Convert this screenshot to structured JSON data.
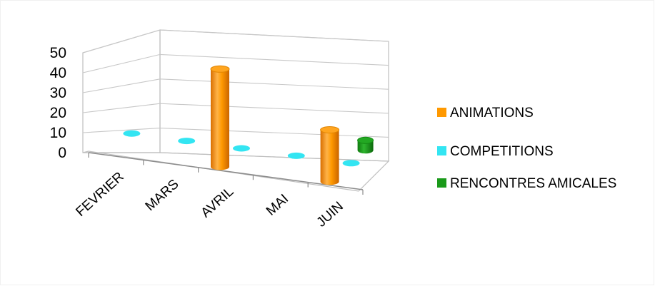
{
  "chart_data": {
    "type": "bar",
    "style": "3d-cylinder",
    "categories": [
      "FEVRIER",
      "MARS",
      "AVRIL",
      "MAI",
      "JUIN"
    ],
    "series": [
      {
        "name": "ANIMATIONS",
        "color": "#FF9900",
        "values": [
          0,
          0,
          49,
          0,
          26
        ]
      },
      {
        "name": "COMPETITIONS",
        "color": "#33E5F2",
        "values": [
          0,
          0,
          0,
          0,
          0
        ]
      },
      {
        "name": "RENCONTRES AMICALES",
        "color": "#1A9A1A",
        "values": [
          0,
          0,
          0,
          0,
          5
        ]
      }
    ],
    "y_ticks": [
      "0",
      "10",
      "20",
      "30",
      "40",
      "50"
    ],
    "ylim": [
      0,
      50
    ],
    "grid": true,
    "legend_position": "right"
  }
}
